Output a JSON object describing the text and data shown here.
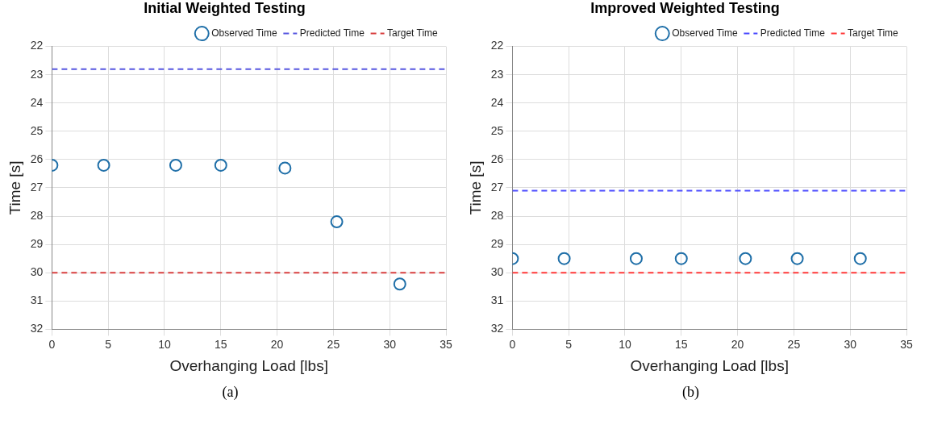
{
  "chart_data": [
    {
      "type": "scatter",
      "title": "Initial Weighted Testing",
      "xlabel": "Overhanging Load [lbs]",
      "ylabel": "Time [s]",
      "xlim": [
        0,
        35
      ],
      "xticks": [
        0,
        5,
        10,
        15,
        20,
        25,
        30,
        35
      ],
      "ylim": [
        32,
        22
      ],
      "yticks": [
        22,
        23,
        24,
        25,
        26,
        27,
        28,
        29,
        30,
        31,
        32
      ],
      "grid": true,
      "legend": "top right",
      "marker": "circle",
      "series": [
        {
          "name": "Observed Time",
          "type": "scatter",
          "color": "#1f6fa8",
          "x": [
            0,
            4.6,
            11,
            15,
            20.7,
            25.3,
            30.9
          ],
          "values": [
            26.2,
            26.2,
            26.2,
            26.2,
            26.3,
            28.2,
            30.4
          ]
        },
        {
          "name": "Predicted Time",
          "type": "line",
          "color": "#5858e0",
          "line_style": "dashed",
          "marker": "none",
          "x": [
            0,
            35
          ],
          "values": [
            22.8,
            22.8
          ]
        },
        {
          "name": "Target Time",
          "type": "line",
          "color": "#d84040",
          "line_style": "dashed",
          "marker": "none",
          "x": [
            0,
            35
          ],
          "values": [
            30,
            30
          ]
        }
      ],
      "annotations": [
        "(a)"
      ]
    },
    {
      "type": "scatter",
      "title": "Improved Weighted Testing",
      "xlabel": "Overhanging Load [lbs]",
      "ylabel": "Time [s]",
      "xlim": [
        0,
        35
      ],
      "xticks": [
        0,
        5,
        10,
        15,
        20,
        25,
        30,
        35
      ],
      "ylim": [
        32,
        22
      ],
      "yticks": [
        22,
        23,
        24,
        25,
        26,
        27,
        28,
        29,
        30,
        31,
        32
      ],
      "grid": true,
      "legend": "top right",
      "marker": "circle",
      "series": [
        {
          "name": "Observed Time",
          "type": "scatter",
          "color": "#1f6fa8",
          "x": [
            0,
            4.6,
            11,
            15,
            20.7,
            25.3,
            30.9
          ],
          "values": [
            29.5,
            29.5,
            29.5,
            29.5,
            29.5,
            29.5,
            29.5
          ]
        },
        {
          "name": "Predicted Time",
          "type": "line",
          "color": "#4a4aff",
          "line_style": "dashed",
          "marker": "none",
          "x": [
            0,
            35
          ],
          "values": [
            27.1,
            27.1
          ]
        },
        {
          "name": "Target Time",
          "type": "line",
          "color": "#ff3a3a",
          "line_style": "dashed",
          "marker": "none",
          "x": [
            0,
            35
          ],
          "values": [
            30,
            30
          ]
        }
      ],
      "annotations": [
        "(b)"
      ]
    }
  ]
}
